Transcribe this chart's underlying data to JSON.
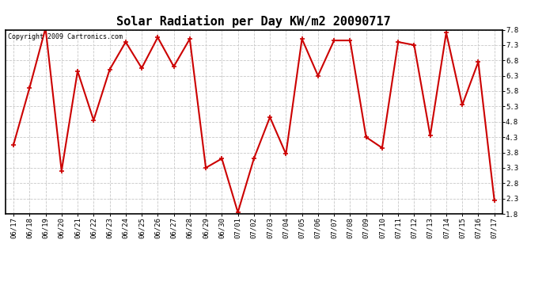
{
  "title": "Solar Radiation per Day KW/m2 20090717",
  "copyright": "Copyright 2009 Cartronics.com",
  "labels": [
    "06/17",
    "06/18",
    "06/19",
    "06/20",
    "06/21",
    "06/22",
    "06/23",
    "06/24",
    "06/25",
    "06/26",
    "06/27",
    "06/28",
    "06/29",
    "06/30",
    "07/01",
    "07/02",
    "07/03",
    "07/04",
    "07/05",
    "07/06",
    "07/07",
    "07/08",
    "07/09",
    "07/10",
    "07/11",
    "07/12",
    "07/13",
    "07/14",
    "07/15",
    "07/16",
    "07/17"
  ],
  "values": [
    4.05,
    5.9,
    7.85,
    3.2,
    6.45,
    4.85,
    6.5,
    7.4,
    6.55,
    7.55,
    6.6,
    7.5,
    3.3,
    3.6,
    1.85,
    3.6,
    4.95,
    3.75,
    7.5,
    6.3,
    7.45,
    7.45,
    4.3,
    3.95,
    7.4,
    7.3,
    4.35,
    7.7,
    5.35,
    6.75,
    2.25
  ],
  "line_color": "#cc0000",
  "marker": "+",
  "marker_size": 4,
  "marker_color": "#cc0000",
  "ylim": [
    1.8,
    7.8
  ],
  "yticks": [
    1.8,
    2.3,
    2.8,
    3.3,
    3.8,
    4.3,
    4.8,
    5.3,
    5.8,
    6.3,
    6.8,
    7.3,
    7.8
  ],
  "grid_color": "#c8c8c8",
  "grid_style": "--",
  "background_color": "#ffffff",
  "title_fontsize": 11,
  "tick_fontsize": 6.5,
  "copyright_fontsize": 6.0
}
